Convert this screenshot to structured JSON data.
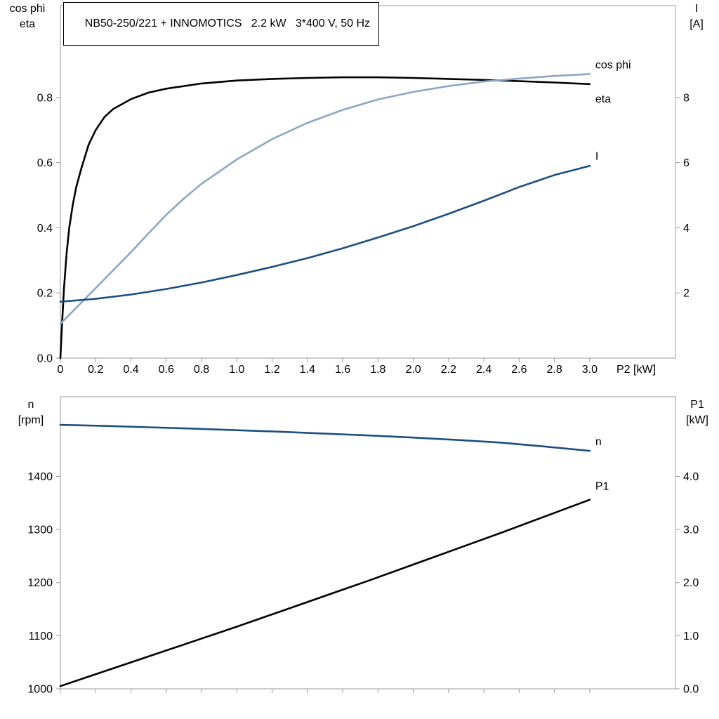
{
  "header": {
    "title": "NB50-250/221 + INNOMOTICS   2.2 kW   3*400 V, 50 Hz"
  },
  "colors": {
    "black": "#000000",
    "light_blue": "#8BA7C7",
    "dark_blue": "#1C4F80",
    "frame": "#999999"
  },
  "chart_data": [
    {
      "type": "line",
      "title": "Motor performance vs output power",
      "x_axis": {
        "label": "P2 [kW]",
        "min": 0,
        "max": 3.486,
        "ticks": [
          {
            "v": 0,
            "t": "0"
          },
          {
            "v": 0.2,
            "t": "0.2"
          },
          {
            "v": 0.4,
            "t": "0.4"
          },
          {
            "v": 0.6,
            "t": "0.6"
          },
          {
            "v": 0.8,
            "t": "0.8"
          },
          {
            "v": 1.0,
            "t": "1.0"
          },
          {
            "v": 1.2,
            "t": "1.2"
          },
          {
            "v": 1.4,
            "t": "1.4"
          },
          {
            "v": 1.6,
            "t": "1.6"
          },
          {
            "v": 1.8,
            "t": "1.8"
          },
          {
            "v": 2.0,
            "t": "2.0"
          },
          {
            "v": 2.2,
            "t": "2.2"
          },
          {
            "v": 2.4,
            "t": "2.4"
          },
          {
            "v": 2.6,
            "t": "2.6"
          },
          {
            "v": 2.8,
            "t": "2.8"
          },
          {
            "v": 3.0,
            "t": "3.0"
          }
        ]
      },
      "left_axis": {
        "title_lines": [
          "cos phi",
          "eta"
        ],
        "min": 0,
        "max": 1.082,
        "ticks": [
          {
            "v": 0,
            "t": "0.0"
          },
          {
            "v": 0.2,
            "t": "0.2"
          },
          {
            "v": 0.4,
            "t": "0.4"
          },
          {
            "v": 0.6,
            "t": "0.6"
          },
          {
            "v": 0.8,
            "t": "0.8"
          }
        ]
      },
      "right_axis": {
        "title_lines": [
          "I",
          "[A]"
        ],
        "min": 0,
        "max": 10.82,
        "ticks": [
          {
            "v": 2,
            "t": "2"
          },
          {
            "v": 4,
            "t": "4"
          },
          {
            "v": 6,
            "t": "6"
          },
          {
            "v": 8,
            "t": "8"
          }
        ]
      },
      "series": [
        {
          "name": "eta",
          "axis": "left",
          "color": "black",
          "label_dx": 8,
          "label_dy": 26,
          "x": [
            0,
            0.01,
            0.02,
            0.035,
            0.05,
            0.07,
            0.09,
            0.12,
            0.16,
            0.2,
            0.25,
            0.3,
            0.4,
            0.5,
            0.6,
            0.8,
            1.0,
            1.2,
            1.4,
            1.6,
            1.8,
            2.0,
            2.2,
            2.4,
            2.6,
            2.8,
            3.0
          ],
          "y": [
            0,
            0.11,
            0.21,
            0.32,
            0.4,
            0.47,
            0.525,
            0.585,
            0.655,
            0.7,
            0.74,
            0.765,
            0.795,
            0.815,
            0.827,
            0.843,
            0.852,
            0.857,
            0.86,
            0.862,
            0.862,
            0.86,
            0.857,
            0.854,
            0.85,
            0.846,
            0.841
          ]
        },
        {
          "name": "cos phi",
          "axis": "left",
          "color": "light_blue",
          "label_dx": 8,
          "label_dy": -8,
          "x": [
            0,
            0.1,
            0.2,
            0.3,
            0.4,
            0.5,
            0.6,
            0.7,
            0.8,
            1.0,
            1.2,
            1.4,
            1.6,
            1.8,
            2.0,
            2.2,
            2.4,
            2.6,
            2.8,
            3.0
          ],
          "y": [
            0.105,
            0.16,
            0.215,
            0.27,
            0.325,
            0.383,
            0.44,
            0.49,
            0.535,
            0.61,
            0.672,
            0.722,
            0.762,
            0.794,
            0.817,
            0.835,
            0.849,
            0.858,
            0.866,
            0.872
          ]
        },
        {
          "name": "I",
          "axis": "right",
          "color": "dark_blue",
          "label_dx": 8,
          "label_dy": -9,
          "x": [
            0,
            0.2,
            0.4,
            0.6,
            0.8,
            1.0,
            1.2,
            1.4,
            1.6,
            1.8,
            2.0,
            2.2,
            2.4,
            2.6,
            2.8,
            3.0
          ],
          "y": [
            1.73,
            1.82,
            1.95,
            2.12,
            2.32,
            2.55,
            2.8,
            3.07,
            3.37,
            3.7,
            4.05,
            4.43,
            4.83,
            5.25,
            5.62,
            5.9
          ]
        }
      ]
    },
    {
      "type": "line",
      "title": "Speed and input power vs output power",
      "x_axis": {
        "label": "",
        "min": 0,
        "max": 3.486,
        "ticks": [
          {
            "v": 0,
            "t": ""
          },
          {
            "v": 0.2,
            "t": ""
          },
          {
            "v": 0.4,
            "t": ""
          },
          {
            "v": 0.6,
            "t": ""
          },
          {
            "v": 0.8,
            "t": ""
          },
          {
            "v": 1.0,
            "t": ""
          },
          {
            "v": 1.2,
            "t": ""
          },
          {
            "v": 1.4,
            "t": ""
          },
          {
            "v": 1.6,
            "t": ""
          },
          {
            "v": 1.8,
            "t": ""
          },
          {
            "v": 2.0,
            "t": ""
          },
          {
            "v": 2.2,
            "t": ""
          },
          {
            "v": 2.4,
            "t": ""
          },
          {
            "v": 2.6,
            "t": ""
          },
          {
            "v": 2.8,
            "t": ""
          },
          {
            "v": 3.0,
            "t": ""
          }
        ]
      },
      "left_axis": {
        "title_lines": [
          "n",
          "[rpm]"
        ],
        "min": 1000,
        "max": 1550,
        "ticks": [
          {
            "v": 1000,
            "t": "1000"
          },
          {
            "v": 1100,
            "t": "1100"
          },
          {
            "v": 1200,
            "t": "1200"
          },
          {
            "v": 1300,
            "t": "1300"
          },
          {
            "v": 1400,
            "t": "1400"
          }
        ]
      },
      "right_axis": {
        "title_lines": [
          "P1",
          "[kW]"
        ],
        "min": 0,
        "max": 5.5,
        "ticks": [
          {
            "v": 0,
            "t": "0.0"
          },
          {
            "v": 1,
            "t": "1.0"
          },
          {
            "v": 2,
            "t": "2.0"
          },
          {
            "v": 3,
            "t": "3.0"
          },
          {
            "v": 4,
            "t": "4.0"
          }
        ]
      },
      "series": [
        {
          "name": "n",
          "axis": "left",
          "color": "dark_blue",
          "label_dx": 8,
          "label_dy": -8,
          "x": [
            0,
            0.25,
            0.5,
            0.75,
            1.0,
            1.25,
            1.5,
            1.75,
            2.0,
            2.25,
            2.5,
            2.75,
            3.0
          ],
          "y": [
            1497,
            1495,
            1492.5,
            1490,
            1487,
            1484,
            1480.5,
            1477,
            1473,
            1468.5,
            1463.5,
            1456,
            1448
          ]
        },
        {
          "name": "P1",
          "axis": "right",
          "color": "black",
          "label_dx": 8,
          "label_dy": -14,
          "x": [
            0,
            0.25,
            0.5,
            0.75,
            1.0,
            1.25,
            1.5,
            1.75,
            2.0,
            2.25,
            2.5,
            2.75,
            3.0
          ],
          "y": [
            0.05,
            0.33,
            0.61,
            0.89,
            1.17,
            1.46,
            1.75,
            2.04,
            2.34,
            2.64,
            2.94,
            3.25,
            3.56
          ]
        }
      ]
    }
  ]
}
